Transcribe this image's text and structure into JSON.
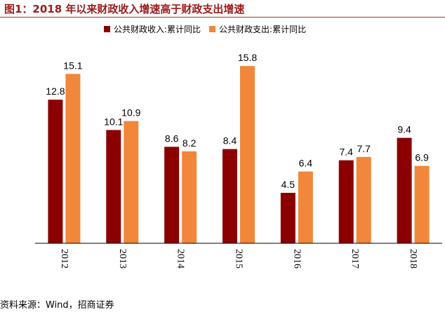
{
  "header": {
    "title": "图1：2018 年以来财政收入增速高于财政支出增速"
  },
  "footer": {
    "source": "资料来源：Wind，招商证券"
  },
  "chart_data": {
    "type": "bar",
    "title": "",
    "xlabel": "",
    "ylabel": "",
    "categories": [
      "2012",
      "2013",
      "2014",
      "2015",
      "2016",
      "2017",
      "2018"
    ],
    "series": [
      {
        "name": "公共财政收入:累计同比",
        "color": "#8b0000",
        "values": [
          12.8,
          10.1,
          8.6,
          8.4,
          4.5,
          7.4,
          9.4
        ]
      },
      {
        "name": "公共财政支出:累计同比",
        "color": "#f0873a",
        "values": [
          15.1,
          10.9,
          8.2,
          15.8,
          6.4,
          7.7,
          6.9
        ]
      }
    ],
    "ylim": [
      0,
      17
    ],
    "legend": "top-center",
    "grid": false,
    "data_labels": true
  }
}
